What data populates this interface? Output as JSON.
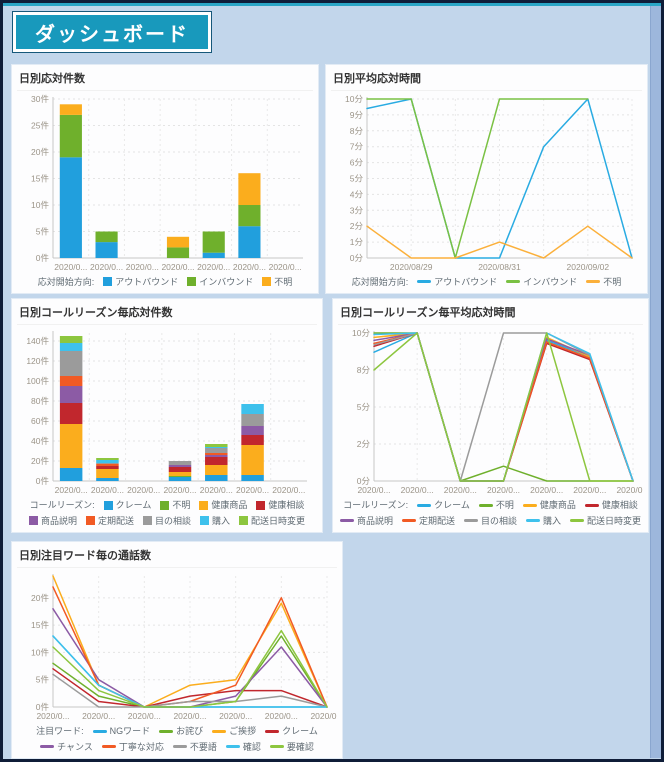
{
  "banner": {
    "title": "ダッシュボード"
  },
  "colors": {
    "page_background": "#c2d6eb",
    "page_border": "#0f1d38",
    "banner_fill": "#1899bc",
    "top_strip": "#2aa6c6",
    "panel_background": "#fdfdfe"
  },
  "charts": [
    {
      "id": "daily-count",
      "title": "日別応対件数",
      "type": "stacked-bar",
      "legend_label": "応対開始方向:",
      "y_max": 30,
      "y_ticks": [
        {
          "v": 0,
          "label": "0件"
        },
        {
          "v": 5,
          "label": "5件"
        },
        {
          "v": 10,
          "label": "10件"
        },
        {
          "v": 15,
          "label": "15件"
        },
        {
          "v": 20,
          "label": "20件"
        },
        {
          "v": 25,
          "label": "25件"
        },
        {
          "v": 30,
          "label": "30件"
        }
      ],
      "categories": [
        "2020/0...",
        "2020/0...",
        "2020/0...",
        "2020/0...",
        "2020/0...",
        "2020/0...",
        "2020/0..."
      ],
      "series": [
        {
          "name": "アウトバウンド",
          "color": "#219fdd",
          "values": [
            19,
            3,
            0,
            0,
            1,
            6,
            0
          ]
        },
        {
          "name": "インバウンド",
          "color": "#6fb02c",
          "values": [
            8,
            2,
            0,
            2,
            4,
            4,
            0
          ]
        },
        {
          "name": "不明",
          "color": "#fbad1d",
          "values": [
            2,
            0,
            0,
            2,
            0,
            6,
            0
          ]
        }
      ]
    },
    {
      "id": "daily-avg-time",
      "title": "日別平均応対時間",
      "type": "line",
      "legend_label": "応対開始方向:",
      "y_max": 10,
      "y_ticks": [
        {
          "v": 0,
          "label": "0分"
        },
        {
          "v": 1,
          "label": "1分"
        },
        {
          "v": 2,
          "label": "2分"
        },
        {
          "v": 3,
          "label": "3分"
        },
        {
          "v": 4,
          "label": "4分"
        },
        {
          "v": 5,
          "label": "5分"
        },
        {
          "v": 6,
          "label": "6分"
        },
        {
          "v": 7,
          "label": "7分"
        },
        {
          "v": 8,
          "label": "8分"
        },
        {
          "v": 9,
          "label": "9分"
        },
        {
          "v": 10,
          "label": "10分"
        }
      ],
      "categories": [
        "",
        "2020/08/29",
        "",
        "2020/08/31",
        "",
        "2020/09/02",
        ""
      ],
      "series": [
        {
          "name": "アウトバウンド",
          "color": "#29abe2",
          "values": [
            9.4,
            10,
            0,
            0,
            7,
            10,
            0
          ]
        },
        {
          "name": "インバウンド",
          "color": "#7ac143",
          "values": [
            10,
            10,
            0,
            10,
            10,
            10,
            null
          ]
        },
        {
          "name": "不明",
          "color": "#fbb03b",
          "values": [
            2,
            0,
            0,
            1,
            0,
            2,
            0
          ]
        }
      ]
    },
    {
      "id": "daily-reason-count",
      "title": "日別コールリーズン毎応対件数",
      "type": "stacked-bar",
      "legend_label": "コールリーズン:",
      "y_max": 148,
      "y_ticks": [
        {
          "v": 0,
          "label": "0件"
        },
        {
          "v": 20,
          "label": "20件"
        },
        {
          "v": 40,
          "label": "40件"
        },
        {
          "v": 60,
          "label": "60件"
        },
        {
          "v": 80,
          "label": "80件"
        },
        {
          "v": 100,
          "label": "100件"
        },
        {
          "v": 120,
          "label": "120件"
        },
        {
          "v": 140,
          "label": "140件"
        }
      ],
      "categories": [
        "2020/0...",
        "2020/0...",
        "2020/0...",
        "2020/0...",
        "2020/0...",
        "2020/0...",
        "2020/0..."
      ],
      "series": [
        {
          "name": "クレーム",
          "color": "#219fdd",
          "values": [
            13,
            3,
            0,
            4,
            6,
            6,
            0
          ]
        },
        {
          "name": "不明",
          "color": "#6fb02c",
          "values": [
            0,
            0,
            0,
            1,
            0,
            0,
            0
          ]
        },
        {
          "name": "健康商品",
          "color": "#fbad1d",
          "values": [
            44,
            9,
            0,
            4,
            10,
            30,
            0
          ]
        },
        {
          "name": "健康相談",
          "color": "#c1272d",
          "values": [
            21,
            3,
            0,
            5,
            8,
            10,
            0
          ]
        },
        {
          "name": "商品説明",
          "color": "#8c5ba5",
          "values": [
            17,
            0,
            0,
            2,
            2,
            9,
            0
          ]
        },
        {
          "name": "定期配送",
          "color": "#f15a24",
          "values": [
            10,
            2,
            0,
            0,
            2,
            0,
            0
          ]
        },
        {
          "name": "目の相談",
          "color": "#9b9b9b",
          "values": [
            25,
            1,
            0,
            4,
            5,
            12,
            0
          ]
        },
        {
          "name": "購入",
          "color": "#3ec1ec",
          "values": [
            8,
            3,
            0,
            0,
            1,
            10,
            0
          ]
        },
        {
          "name": "配送日時変更",
          "color": "#8dc63f",
          "values": [
            7,
            2,
            0,
            0,
            3,
            0,
            0
          ]
        }
      ]
    },
    {
      "id": "daily-reason-avg-time",
      "title": "日別コールリーズン毎平均応対時間",
      "type": "line",
      "legend_label": "コールリーズン:",
      "y_max": 10,
      "y_ticks": [
        {
          "v": 0,
          "label": "0分"
        },
        {
          "v": 2.5,
          "label": "2分"
        },
        {
          "v": 5,
          "label": "5分"
        },
        {
          "v": 7.5,
          "label": "8分"
        },
        {
          "v": 10,
          "label": "10分"
        }
      ],
      "categories": [
        "2020/0...",
        "2020/0...",
        "2020/0...",
        "2020/0...",
        "2020/0...",
        "2020/0...",
        "2020/0..."
      ],
      "series": [
        {
          "name": "クレーム",
          "color": "#29abe2",
          "values": [
            8.7,
            10,
            0,
            0,
            9.5,
            8.4,
            0
          ]
        },
        {
          "name": "不明",
          "color": "#6fb02c",
          "values": [
            10,
            10,
            0,
            1,
            0,
            0,
            0
          ]
        },
        {
          "name": "健康商品",
          "color": "#fbad1d",
          "values": [
            9.7,
            10,
            0,
            0,
            9.7,
            8.4,
            0
          ]
        },
        {
          "name": "健康相談",
          "color": "#c1272d",
          "values": [
            9.1,
            10,
            0,
            0,
            9.3,
            8.2,
            0
          ]
        },
        {
          "name": "商品説明",
          "color": "#8c5ba5",
          "values": [
            9.5,
            10,
            0,
            0,
            9.6,
            8.5,
            0
          ]
        },
        {
          "name": "定期配送",
          "color": "#f15a24",
          "values": [
            9.3,
            10,
            0,
            0,
            9.4,
            8.3,
            0
          ]
        },
        {
          "name": "目の相談",
          "color": "#9b9b9b",
          "values": [
            9.2,
            10,
            0,
            10,
            10,
            8.5,
            0
          ]
        },
        {
          "name": "購入",
          "color": "#3ec1ec",
          "values": [
            9.9,
            10,
            0,
            0,
            10,
            8.6,
            0
          ]
        },
        {
          "name": "配送日時変更",
          "color": "#8dc63f",
          "values": [
            7.5,
            10,
            0,
            0,
            10,
            0,
            0
          ]
        }
      ]
    },
    {
      "id": "daily-word-count",
      "title": "日別注目ワード毎の通話数",
      "type": "line",
      "legend_label": "注目ワード:",
      "y_max": 24,
      "y_ticks": [
        {
          "v": 0,
          "label": "0件"
        },
        {
          "v": 5,
          "label": "5件"
        },
        {
          "v": 10,
          "label": "10件"
        },
        {
          "v": 15,
          "label": "15件"
        },
        {
          "v": 20,
          "label": "20件"
        }
      ],
      "categories": [
        "2020/0...",
        "2020/0...",
        "2020/0...",
        "2020/0...",
        "2020/0...",
        "2020/0...",
        "2020/0..."
      ],
      "series": [
        {
          "name": "NGワード",
          "color": "#29abe2",
          "values": [
            13,
            4,
            0,
            0,
            0,
            0,
            0
          ]
        },
        {
          "name": "お詫び",
          "color": "#6fb02c",
          "values": [
            8,
            2,
            0,
            0,
            1,
            13,
            0
          ]
        },
        {
          "name": "ご挨拶",
          "color": "#fbad1d",
          "values": [
            24,
            4,
            0,
            4,
            5,
            19,
            0
          ]
        },
        {
          "name": "クレーム",
          "color": "#c1272d",
          "values": [
            7,
            1,
            0,
            2,
            3,
            3,
            0
          ]
        },
        {
          "name": "チャンス",
          "color": "#8c5ba5",
          "values": [
            18,
            5,
            0,
            0,
            2,
            11,
            0
          ]
        },
        {
          "name": "丁寧な対応",
          "color": "#f15a24",
          "values": [
            22,
            4,
            0,
            1,
            4,
            20,
            0
          ]
        },
        {
          "name": "不要語",
          "color": "#9b9b9b",
          "values": [
            6,
            0,
            0,
            1,
            1,
            2,
            0
          ]
        },
        {
          "name": "確認",
          "color": "#3ec1ec",
          "values": [
            13,
            4,
            0,
            0,
            0,
            0,
            0
          ]
        },
        {
          "name": "要確認",
          "color": "#8dc63f",
          "values": [
            11,
            3,
            0,
            0,
            1,
            14,
            0
          ]
        }
      ]
    }
  ]
}
